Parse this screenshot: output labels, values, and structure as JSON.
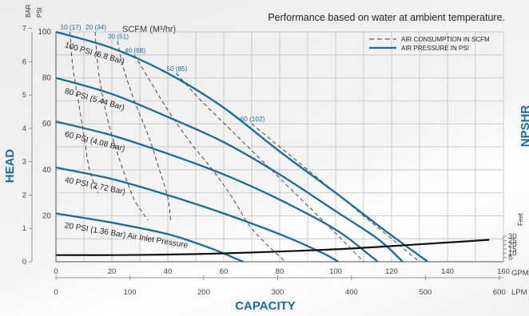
{
  "chart_data": {
    "type": "line",
    "title": "Performance based on water at ambient temperature.",
    "xlabel": "CAPACITY",
    "ylabel": "HEAD",
    "y2label": "NPSHR",
    "x_primary_unit": "GPM",
    "x_secondary_unit": "LPM",
    "y_primary_unit": "PSI",
    "y_secondary_unit": "BAR",
    "y2_unit": "Feet",
    "air_unit_label": "SCFM (M³/hr)",
    "xlim": [
      0,
      160
    ],
    "ylim": [
      0,
      100
    ],
    "x_ticks_gpm": [
      "0",
      "20",
      "40",
      "60",
      "80",
      "100",
      "120",
      "140",
      "160"
    ],
    "x_ticks_lpm": [
      "0",
      "100",
      "200",
      "300",
      "400",
      "500",
      "600"
    ],
    "y_ticks_psi": [
      "20",
      "40",
      "60",
      "80",
      "100"
    ],
    "y_ticks_bar": [
      "0",
      "1",
      "2",
      "3",
      "4",
      "5",
      "6",
      "7"
    ],
    "y2_ticks": [
      "5",
      "10",
      "15",
      "20",
      "25",
      "30"
    ],
    "grid": true,
    "legend_position": "top-right",
    "legend": [
      {
        "label": "AIR CONSUMPTION IN SCFM",
        "style": "dashed",
        "color": "#333333"
      },
      {
        "label": "AIR PRESSURE IN PSI",
        "style": "solid",
        "color": "#1a6b96"
      }
    ],
    "pressure_curves": [
      {
        "label": "100 PSI (6.8 Bar)",
        "points": [
          [
            0,
            100
          ],
          [
            20,
            93
          ],
          [
            40,
            82
          ],
          [
            60,
            67
          ],
          [
            80,
            48
          ],
          [
            100,
            30
          ],
          [
            115,
            16
          ],
          [
            125,
            7
          ],
          [
            133,
            0
          ]
        ]
      },
      {
        "label": "80 PSI (5.44 Bar)",
        "points": [
          [
            0,
            80
          ],
          [
            20,
            73
          ],
          [
            40,
            63
          ],
          [
            60,
            52
          ],
          [
            80,
            38
          ],
          [
            100,
            22
          ],
          [
            115,
            10
          ],
          [
            124,
            0
          ]
        ]
      },
      {
        "label": "60 PSI (4.08 Bar)",
        "points": [
          [
            0,
            61
          ],
          [
            20,
            55
          ],
          [
            40,
            47
          ],
          [
            60,
            38
          ],
          [
            80,
            27
          ],
          [
            100,
            14
          ],
          [
            112,
            3
          ],
          [
            115,
            0
          ]
        ]
      },
      {
        "label": "40 PSI (2.72 Bar)",
        "points": [
          [
            0,
            41
          ],
          [
            20,
            36
          ],
          [
            40,
            29
          ],
          [
            60,
            21
          ],
          [
            80,
            12
          ],
          [
            95,
            4
          ],
          [
            101,
            0
          ]
        ]
      },
      {
        "label": "20 PSI (1.36 Bar) Air Inlet Pressure",
        "points": [
          [
            0,
            21
          ],
          [
            20,
            17
          ],
          [
            40,
            12
          ],
          [
            55,
            6
          ],
          [
            65,
            1
          ],
          [
            67,
            0
          ]
        ]
      }
    ],
    "air_consumption_curves": [
      {
        "label": "10 (17)",
        "points": [
          [
            5,
            100
          ],
          [
            6,
            85
          ],
          [
            8,
            70
          ],
          [
            10,
            55
          ],
          [
            12,
            40
          ],
          [
            15,
            30
          ]
        ]
      },
      {
        "label": "20 (34)",
        "points": [
          [
            14,
            100
          ],
          [
            15,
            85
          ],
          [
            17,
            70
          ],
          [
            20,
            55
          ],
          [
            24,
            40
          ],
          [
            28,
            27
          ],
          [
            33,
            18
          ]
        ]
      },
      {
        "label": "30 (51)",
        "points": [
          [
            22,
            96
          ],
          [
            24,
            85
          ],
          [
            28,
            70
          ],
          [
            33,
            55
          ],
          [
            37,
            40
          ],
          [
            40,
            28
          ],
          [
            41,
            18
          ]
        ]
      },
      {
        "label": "40 (68)",
        "points": [
          [
            28,
            90
          ],
          [
            34,
            78
          ],
          [
            40,
            66
          ],
          [
            48,
            52
          ],
          [
            56,
            40
          ],
          [
            63,
            28
          ],
          [
            69,
            16
          ],
          [
            75,
            8
          ],
          [
            82,
            0
          ]
        ]
      },
      {
        "label": "50 (85)",
        "points": [
          [
            43,
            82
          ],
          [
            52,
            70
          ],
          [
            62,
            58
          ],
          [
            72,
            46
          ],
          [
            82,
            34
          ],
          [
            92,
            22
          ],
          [
            102,
            10
          ],
          [
            110,
            0
          ]
        ]
      },
      {
        "label": "60 (102)",
        "points": [
          [
            70,
            60
          ],
          [
            80,
            50
          ],
          [
            90,
            40
          ],
          [
            100,
            30
          ],
          [
            112,
            18
          ],
          [
            122,
            8
          ],
          [
            130,
            0
          ]
        ]
      }
    ],
    "npshr_curve": {
      "unit": "Feet",
      "points": [
        [
          0,
          5.0
        ],
        [
          20,
          5.0
        ],
        [
          40,
          5.6
        ],
        [
          60,
          7.0
        ],
        [
          80,
          9.2
        ],
        [
          100,
          11.8
        ],
        [
          120,
          15.6
        ],
        [
          140,
          19.8
        ],
        [
          155,
          23.0
        ]
      ]
    }
  }
}
